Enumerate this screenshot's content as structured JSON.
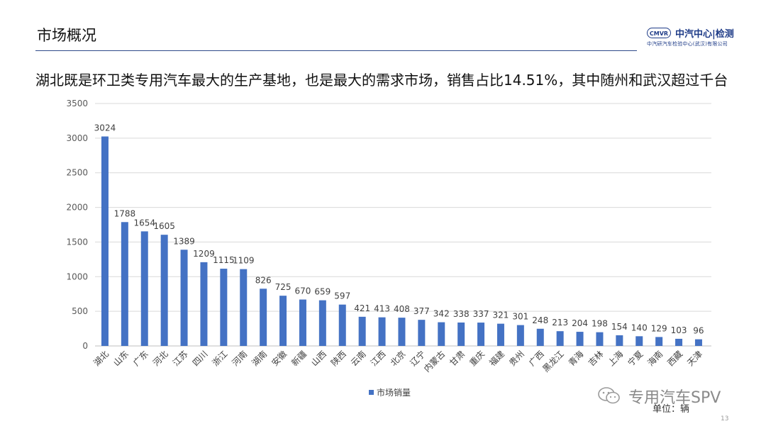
{
  "header": {
    "title": "市场概况",
    "logo_mark": "CMVR",
    "logo_name": "中汽中心|检测",
    "logo_sub": "中汽研汽车检验中心(武汉)有限公司"
  },
  "headline": "湖北既是环卫类专用汽车最大的生产基地，也是最大的需求市场，销售占比14.51%，其中随州和武汉超过千台",
  "unit_label": "单位：辆",
  "page_number": "13",
  "watermark": "专用汽车SPV",
  "colors": {
    "bar": "#4472c4",
    "grid": "#d9d9d9",
    "axis": "#bfbfbf",
    "header_rule": "#2e4a8a"
  },
  "chart_data": {
    "type": "bar",
    "categories": [
      "湖北",
      "山东",
      "广东",
      "河北",
      "江苏",
      "四川",
      "浙江",
      "河南",
      "湖南",
      "安徽",
      "新疆",
      "山西",
      "陕西",
      "云南",
      "江西",
      "北京",
      "辽宁",
      "内蒙古",
      "甘肃",
      "重庆",
      "福建",
      "贵州",
      "广西",
      "黑龙江",
      "青海",
      "吉林",
      "上海",
      "宁夏",
      "海南",
      "西藏",
      "天津"
    ],
    "series": [
      {
        "name": "市场销量",
        "values": [
          3024,
          1788,
          1654,
          1605,
          1389,
          1209,
          1115,
          1109,
          826,
          725,
          670,
          659,
          597,
          421,
          413,
          408,
          377,
          342,
          338,
          337,
          321,
          301,
          248,
          213,
          204,
          198,
          154,
          140,
          129,
          103,
          96
        ]
      }
    ],
    "ylim": [
      0,
      3500
    ],
    "yticks": [
      0,
      500,
      1000,
      1500,
      2000,
      2500,
      3000,
      3500
    ],
    "grid": true,
    "legend_position": "bottom-center",
    "data_labels": true
  }
}
